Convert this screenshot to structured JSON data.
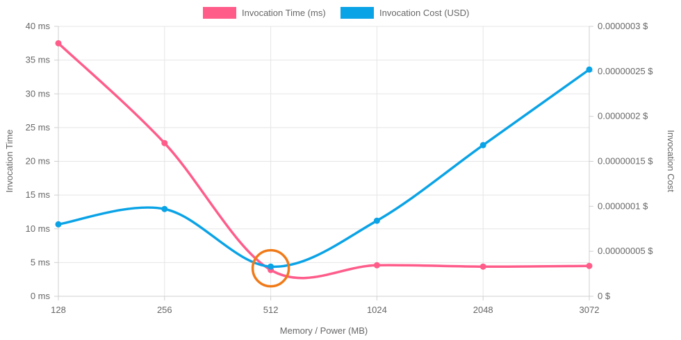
{
  "chart_data": {
    "type": "line",
    "title": "",
    "xlabel": "Memory / Power (MB)",
    "ylabel_left": "Invocation Time",
    "ylabel_right": "Invocation Cost",
    "categories": [
      "128",
      "256",
      "512",
      "1024",
      "2048",
      "3072"
    ],
    "y_left": {
      "min": 0,
      "max": 40,
      "step": 5,
      "ticks": [
        "0 ms",
        "5 ms",
        "10 ms",
        "15 ms",
        "20 ms",
        "25 ms",
        "30 ms",
        "35 ms",
        "40 ms"
      ]
    },
    "y_right": {
      "min": 0,
      "max": 3e-07,
      "step": 5e-08,
      "ticks": [
        "0 $",
        "0.00000005 $",
        "0.0000001 $",
        "0.00000015 $",
        "0.0000002 $",
        "0.00000025 $",
        "0.0000003 $"
      ]
    },
    "grid": true,
    "legend_position": "top-center",
    "series": [
      {
        "name": "Invocation Time (ms)",
        "axis": "left",
        "color": "#ff5c8a",
        "values": [
          37.5,
          22.7,
          3.9,
          4.6,
          4.4,
          4.5
        ]
      },
      {
        "name": "Invocation Cost (USD)",
        "axis": "right",
        "color": "#0aa3e6",
        "values": [
          8e-08,
          9.7e-08,
          3.3e-08,
          8.4e-08,
          1.68e-07,
          2.52e-07
        ]
      }
    ],
    "annotations": [
      {
        "type": "circle-highlight",
        "category": "512",
        "color": "#f07a18"
      }
    ]
  }
}
